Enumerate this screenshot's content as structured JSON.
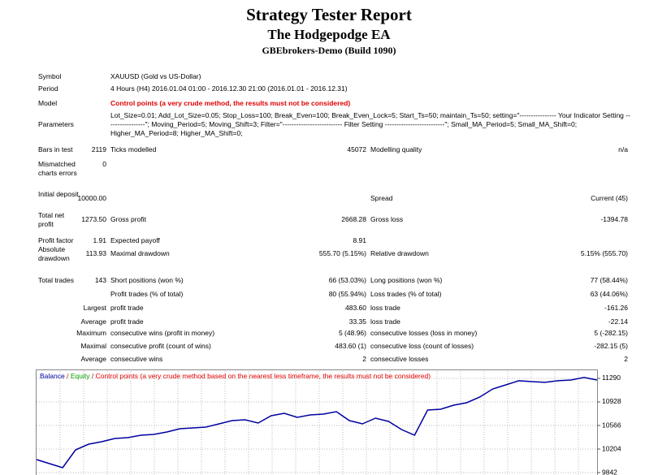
{
  "header": {
    "title": "Strategy Tester Report",
    "subtitle": "The Hodgepodge EA",
    "broker": "GBEbrokers-Demo (Build 1090)"
  },
  "info": [
    [
      "Symbol",
      "XAUUSD (Gold vs US-Dollar)"
    ],
    [
      "Period",
      "4 Hours (H4) 2016.01.04 01:00 - 2016.12.30 21:00 (2016.01.01 - 2016.12.31)"
    ],
    [
      "Model",
      "Control points (a very crude method, the results must not be considered)"
    ],
    [
      "Parameters",
      "Lot_Size=0.01; Add_Lot_Size=0.05; Stop_Loss=100; Break_Even=100; Break_Even_Lock=5; Start_Ts=50; maintain_Ts=50; setting=\"---------------- Your Indicator Setting -----------------\"; Moving_Period=5; Moving_Shift=3; Filter=\"-------------------------- Filter Setting --------------------------\"; Small_MA_Period=5; Small_MA_Shift=0; Higher_MA_Period=8; Higher_MA_Shift=0;"
    ]
  ],
  "stats": [
    [
      "Bars in test",
      "2119",
      "Ticks modelled",
      "45072",
      "Modelling quality",
      "n/a"
    ],
    [
      "Mismatched charts errors",
      "0",
      null,
      null,
      null,
      null
    ],
    [
      "Initial deposit",
      "10000.00",
      null,
      null,
      "Spread",
      "Current (45)"
    ],
    [
      "Total net profit",
      "1273.50",
      "Gross profit",
      "2668.28",
      "Gross loss",
      "-1394.78"
    ],
    [
      "Profit factor",
      "1.91",
      "Expected payoff",
      "8.91",
      null,
      null
    ],
    [
      "Absolute drawdown",
      "113.93",
      "Maximal drawdown",
      "555.70 (5.15%)",
      "Relative drawdown",
      "5.15% (555.70)"
    ],
    [
      "Total trades",
      "143",
      "Short positions (won %)",
      "66 (53.03%)",
      "Long positions (won %)",
      "77 (58.44%)"
    ],
    [
      null,
      null,
      "Profit trades (% of total)",
      "80 (55.94%)",
      "Loss trades (% of total)",
      "63 (44.06%)"
    ],
    [
      null,
      "Largest",
      "profit trade",
      "483.60",
      "loss trade",
      "-161.26"
    ],
    [
      null,
      "Average",
      "profit trade",
      "33.35",
      "loss trade",
      "-22.14"
    ],
    [
      null,
      "Maximum",
      "consecutive wins (profit in money)",
      "5 (48.96)",
      "consecutive losses (loss in money)",
      "5 (-282.15)"
    ],
    [
      null,
      "Maximal",
      "consecutive profit (count of wins)",
      "483.60 (1)",
      "consecutive loss (count of losses)",
      "-282.15 (5)"
    ],
    [
      null,
      "Average",
      "consecutive wins",
      "2",
      "consecutive losses",
      "2"
    ]
  ],
  "chart_data": {
    "type": "line",
    "series": [
      {
        "name": "Balance",
        "color": "#0000a0",
        "values": [
          10042,
          9980,
          9917,
          10192,
          10279,
          10317,
          10367,
          10379,
          10416,
          10429,
          10466,
          10516,
          10529,
          10541,
          10591,
          10641,
          10654,
          10604,
          10716,
          10753,
          10691,
          10728,
          10741,
          10778,
          10641,
          10591,
          10678,
          10629,
          10504,
          10416,
          10803,
          10816,
          10878,
          10915,
          11003,
          11128,
          11190,
          11253,
          11240,
          11228,
          11253,
          11265,
          11303,
          11265
        ]
      },
      {
        "name": "Equity",
        "color": "#00a000"
      }
    ],
    "note": "Control points (a very crude method based on the nearest less timeframe, the results must not be considered)",
    "note_color": "#e00000",
    "separator": "/",
    "ylim": [
      9805,
      11402
    ],
    "yticks": [
      9842,
      10204,
      10566,
      10928,
      11290
    ],
    "grid": true
  }
}
